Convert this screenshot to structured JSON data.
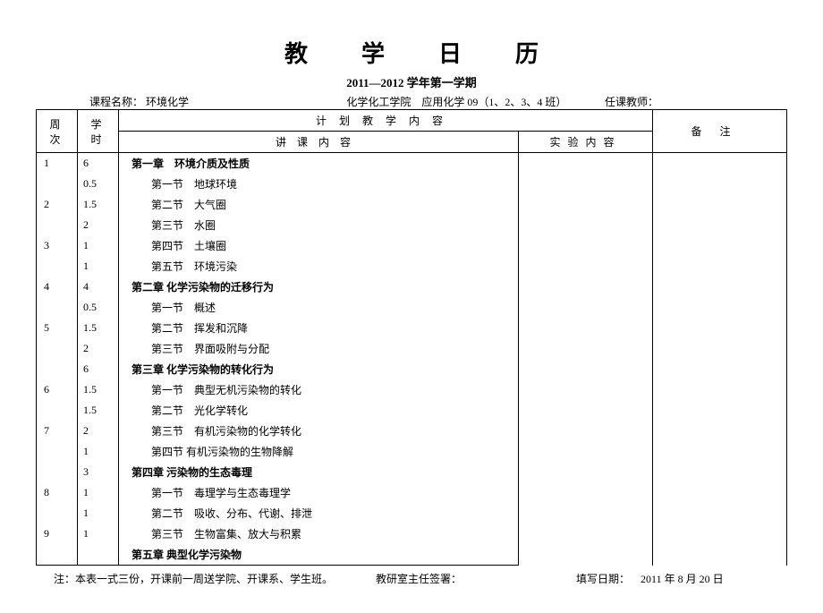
{
  "title": "教学日历",
  "subtitle": "2011—2012 学年第一学期",
  "meta": {
    "course_label": "课程名称：",
    "course_name": "环境化学",
    "college": "化学化工学院　应用化学 09（1、2、3、4 班）",
    "teacher_label": "任课教师："
  },
  "headers": {
    "week": "周 次",
    "hours": "学 时",
    "plan": "计划教学内容",
    "lecture": "讲课内容",
    "experiment": "实验内容",
    "note": "备注"
  },
  "rows": [
    {
      "week": "1",
      "hours": "6",
      "lecture": "第一章　环境介质及性质",
      "cls": "chapter"
    },
    {
      "week": "",
      "hours": "0.5",
      "lecture": "第一节　地球环境",
      "cls": "section"
    },
    {
      "week": "2",
      "hours": "1.5",
      "lecture": "第二节　大气圈",
      "cls": "section"
    },
    {
      "week": "",
      "hours": "2",
      "lecture": "第三节　水圈",
      "cls": "section"
    },
    {
      "week": "3",
      "hours": "1",
      "lecture": "第四节　土壤圈",
      "cls": "section"
    },
    {
      "week": "",
      "hours": "1",
      "lecture": "第五节　环境污染",
      "cls": "section"
    },
    {
      "week": "4",
      "hours": "4",
      "lecture": "第二章  化学污染物的迁移行为",
      "cls": "chapter"
    },
    {
      "week": "",
      "hours": "0.5",
      "lecture": "第一节　概述",
      "cls": "section"
    },
    {
      "week": "5",
      "hours": "1.5",
      "lecture": "第二节　挥发和沉降",
      "cls": "section"
    },
    {
      "week": "",
      "hours": "2",
      "lecture": "第三节　界面吸附与分配",
      "cls": "section"
    },
    {
      "week": "",
      "hours": "6",
      "lecture": "第三章  化学污染物的转化行为",
      "cls": "chapter"
    },
    {
      "week": "6",
      "hours": "1.5",
      "lecture": "第一节　典型无机污染物的转化",
      "cls": "section"
    },
    {
      "week": "",
      "hours": "1.5",
      "lecture": "第二节　光化学转化",
      "cls": "section"
    },
    {
      "week": "7",
      "hours": "2",
      "lecture": "第三节　有机污染物的化学转化",
      "cls": "section"
    },
    {
      "week": "",
      "hours": "1",
      "lecture": "第四节  有机污染物的生物降解",
      "cls": "section"
    },
    {
      "week": "",
      "hours": "3",
      "lecture": "第四章  污染物的生态毒理",
      "cls": "chapter"
    },
    {
      "week": "8",
      "hours": "1",
      "lecture": "第一节　毒理学与生态毒理学",
      "cls": "section"
    },
    {
      "week": "",
      "hours": "1",
      "lecture": "第二节　吸收、分布、代谢、排泄",
      "cls": "section"
    },
    {
      "week": "9",
      "hours": "1",
      "lecture": "第三节　生物富集、放大与积累",
      "cls": "section"
    },
    {
      "week": "",
      "hours": "",
      "lecture": "第五章 典型化学污染物",
      "cls": "chapter"
    }
  ],
  "footer": {
    "note": "注：本表一式三份，开课前一周送学院、开课系、学生班。",
    "sign": "教研室主任签署：",
    "date_label": "填写日期：",
    "date_value": "2011 年 8 月 20 日"
  }
}
